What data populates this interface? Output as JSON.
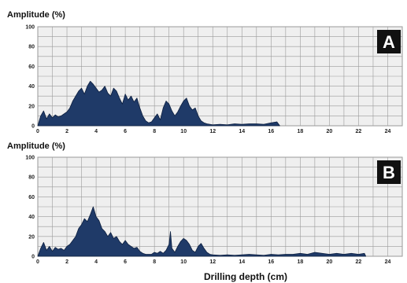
{
  "colors": {
    "area_fill": "#1f3a68",
    "area_stroke": "#0d1f3f",
    "plot_bg": "#efefef",
    "grid": "#9a9a9a",
    "badge_bg": "#111111",
    "badge_text": "#ffffff"
  },
  "chart_data": [
    {
      "type": "area",
      "panel_label": "A",
      "ylabel": "Amplitude (%)",
      "xlabel": "",
      "xlim": [
        0,
        25
      ],
      "ylim": [
        0,
        100
      ],
      "xticks": [
        0,
        2,
        4,
        6,
        8,
        10,
        12,
        14,
        16,
        18,
        20,
        22,
        24
      ],
      "yticks": [
        0,
        20,
        40,
        60,
        80,
        100
      ],
      "grid": true,
      "x": [
        0,
        0.2,
        0.4,
        0.6,
        0.8,
        1,
        1.2,
        1.4,
        1.6,
        1.8,
        2,
        2.2,
        2.4,
        2.6,
        2.8,
        3,
        3.2,
        3.4,
        3.6,
        3.8,
        4,
        4.2,
        4.4,
        4.6,
        4.8,
        5,
        5.2,
        5.4,
        5.6,
        5.8,
        6,
        6.2,
        6.4,
        6.6,
        6.8,
        7,
        7.2,
        7.4,
        7.6,
        7.8,
        8,
        8.2,
        8.4,
        8.6,
        8.8,
        9,
        9.2,
        9.4,
        9.6,
        9.8,
        10,
        10.2,
        10.4,
        10.6,
        10.8,
        11,
        11.2,
        11.4,
        11.6,
        11.8,
        12,
        12.5,
        13,
        13.5,
        14,
        14.5,
        15,
        15.5,
        16,
        16.4,
        16.6
      ],
      "y": [
        0,
        10,
        15,
        7,
        12,
        8,
        11,
        9,
        10,
        12,
        14,
        18,
        25,
        30,
        35,
        38,
        32,
        40,
        45,
        42,
        38,
        34,
        36,
        40,
        33,
        30,
        38,
        35,
        28,
        22,
        32,
        26,
        30,
        24,
        28,
        18,
        10,
        5,
        3,
        4,
        8,
        12,
        6,
        18,
        25,
        22,
        15,
        10,
        14,
        20,
        25,
        28,
        20,
        16,
        18,
        10,
        5,
        3,
        2,
        1.5,
        1,
        1.5,
        1,
        2,
        1.5,
        2,
        2,
        1.5,
        3,
        4,
        0
      ]
    },
    {
      "type": "area",
      "panel_label": "B",
      "ylabel": "Amplitude (%)",
      "xlabel": "Drilling depth (cm)",
      "xlim": [
        0,
        25
      ],
      "ylim": [
        0,
        100
      ],
      "xticks": [
        0,
        2,
        4,
        6,
        8,
        10,
        12,
        14,
        16,
        18,
        20,
        22,
        24
      ],
      "yticks": [
        0,
        20,
        40,
        60,
        80,
        100
      ],
      "grid": true,
      "x": [
        0,
        0.2,
        0.4,
        0.6,
        0.8,
        1,
        1.2,
        1.4,
        1.6,
        1.8,
        2,
        2.2,
        2.4,
        2.6,
        2.8,
        3,
        3.2,
        3.4,
        3.6,
        3.8,
        4,
        4.2,
        4.4,
        4.6,
        4.8,
        5,
        5.2,
        5.4,
        5.6,
        5.8,
        6,
        6.2,
        6.4,
        6.6,
        6.8,
        7,
        7.2,
        7.4,
        7.6,
        7.8,
        8,
        8.2,
        8.4,
        8.6,
        8.8,
        9,
        9.1,
        9.2,
        9.4,
        9.6,
        9.8,
        10,
        10.2,
        10.4,
        10.6,
        10.8,
        11,
        11.2,
        11.4,
        11.6,
        11.8,
        12,
        12.5,
        13,
        13.5,
        14,
        14.5,
        15,
        15.5,
        16,
        16.5,
        17,
        17.5,
        18,
        18.5,
        19,
        19.5,
        20,
        20.5,
        21,
        21.5,
        22,
        22.4,
        22.5
      ],
      "y": [
        0,
        8,
        14,
        6,
        10,
        5,
        9,
        7,
        8,
        6,
        10,
        12,
        16,
        20,
        28,
        32,
        38,
        35,
        42,
        50,
        40,
        36,
        28,
        25,
        20,
        24,
        18,
        20,
        15,
        12,
        16,
        12,
        10,
        8,
        9,
        5,
        3,
        2,
        2,
        2,
        4,
        3,
        5,
        3,
        6,
        12,
        25,
        8,
        4,
        10,
        15,
        18,
        16,
        12,
        6,
        4,
        10,
        13,
        8,
        4,
        2,
        1.5,
        1,
        1.5,
        1,
        1.5,
        2,
        1.5,
        1,
        2,
        1.5,
        2,
        2,
        3,
        2,
        4,
        3,
        2,
        3,
        2,
        3,
        2,
        3,
        0
      ]
    }
  ]
}
